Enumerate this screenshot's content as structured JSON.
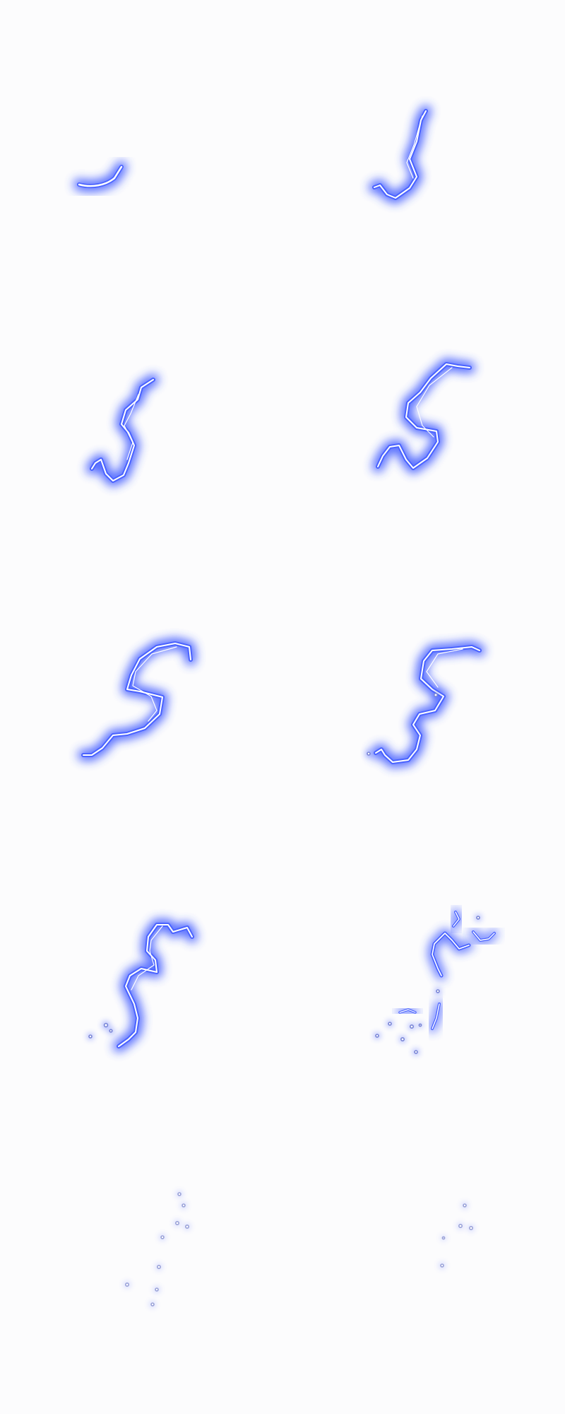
{
  "sheet": {
    "background": "#fcfcfd",
    "glow_color": "#2f4bff",
    "core_color": "#ffffff",
    "frame_count": 10
  }
}
